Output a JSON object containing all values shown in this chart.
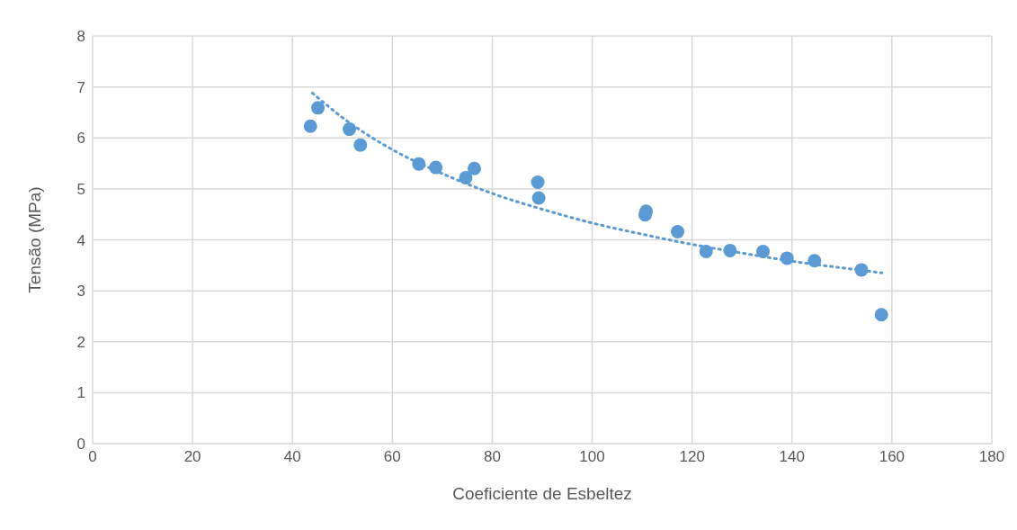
{
  "chart_data": {
    "type": "scatter",
    "xlabel": "Coeficiente de Esbeltez",
    "ylabel": "Tensão (MPa)",
    "xlim": [
      0,
      180
    ],
    "xticks": [
      0,
      20,
      40,
      60,
      80,
      100,
      120,
      140,
      160,
      180
    ],
    "ylim": [
      0,
      8
    ],
    "yticks": [
      0,
      1,
      2,
      3,
      4,
      5,
      6,
      7,
      8
    ],
    "grid": true,
    "legend": false,
    "marker": "circle",
    "series": [
      {
        "color": "#5b9bd5",
        "x": [
          43.6,
          45.1,
          51.4,
          53.6,
          65.3,
          68.7,
          74.7,
          76.4,
          89.1,
          89.3,
          110.8,
          110.6,
          117.1,
          122.8,
          127.6,
          134.2,
          139.0,
          144.5,
          153.9,
          157.9
        ],
        "values": [
          6.23,
          6.59,
          6.17,
          5.86,
          5.49,
          5.42,
          5.22,
          5.4,
          5.13,
          4.82,
          4.56,
          4.49,
          4.16,
          3.77,
          3.79,
          3.77,
          3.64,
          3.59,
          3.41,
          2.53
        ]
      },
      {
        "type": "line",
        "color": "#5b9bd5",
        "line_style": "dotted",
        "marker": "none",
        "x": [
          44,
          50,
          60,
          70,
          80,
          90,
          100,
          110,
          120,
          130,
          140,
          150,
          158
        ],
        "values": [
          6.88,
          6.4,
          5.77,
          5.3,
          4.91,
          4.6,
          4.33,
          4.11,
          3.91,
          3.74,
          3.58,
          3.45,
          3.35
        ]
      }
    ]
  }
}
